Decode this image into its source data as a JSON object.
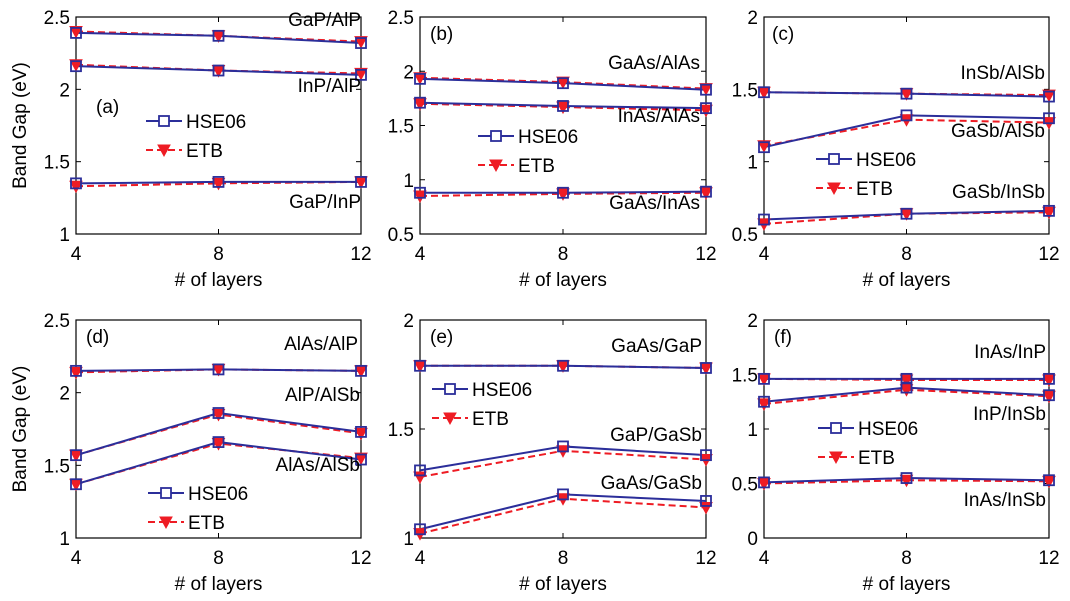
{
  "figure": {
    "ylabel": "Band Gap (eV)",
    "xlabel": "# of layers"
  },
  "legend": {
    "hse": "HSE06",
    "etb": "ETB"
  },
  "colors": {
    "hse": "#2b2e9a",
    "etb": "#ee1c24",
    "axis": "#000000"
  },
  "chart_data": [
    {
      "type": "line",
      "panel_label": "(a)",
      "x": [
        4,
        8,
        12
      ],
      "xlabel": "# of layers",
      "ylabel": "Band Gap (eV)",
      "ylim": [
        1,
        2.5
      ],
      "yticks": [
        "1",
        "1.5",
        "2",
        "2.5"
      ],
      "xticks": [
        "4",
        "8",
        "12"
      ],
      "legend_position": "center-left",
      "series": [
        {
          "name": "GaP/AlP",
          "hse": [
            2.39,
            2.37,
            2.32
          ],
          "etb": [
            2.4,
            2.37,
            2.33
          ]
        },
        {
          "name": "InP/AlP",
          "hse": [
            2.16,
            2.13,
            2.1
          ],
          "etb": [
            2.17,
            2.13,
            2.11
          ]
        },
        {
          "name": "GaP/InP",
          "hse": [
            1.35,
            1.36,
            1.36
          ],
          "etb": [
            1.33,
            1.35,
            1.36
          ]
        }
      ]
    },
    {
      "type": "line",
      "panel_label": "(b)",
      "x": [
        4,
        8,
        12
      ],
      "xlabel": "# of layers",
      "ylabel": "",
      "ylim": [
        0.5,
        2.5
      ],
      "yticks": [
        "0.5",
        "1",
        "1.5",
        "2",
        "2.5"
      ],
      "xticks": [
        "4",
        "8",
        "12"
      ],
      "legend_position": "center",
      "series": [
        {
          "name": "GaAs/AlAs",
          "hse": [
            1.93,
            1.89,
            1.83
          ],
          "etb": [
            1.94,
            1.9,
            1.84
          ]
        },
        {
          "name": "InAs/AlAs",
          "hse": [
            1.71,
            1.68,
            1.66
          ],
          "etb": [
            1.7,
            1.67,
            1.64
          ]
        },
        {
          "name": "GaAs/InAs",
          "hse": [
            0.88,
            0.88,
            0.89
          ],
          "etb": [
            0.85,
            0.87,
            0.88
          ]
        }
      ]
    },
    {
      "type": "line",
      "panel_label": "(c)",
      "x": [
        4,
        8,
        12
      ],
      "xlabel": "# of layers",
      "ylabel": "",
      "ylim": [
        0.5,
        2
      ],
      "yticks": [
        "0.5",
        "1",
        "1.5",
        "2"
      ],
      "xticks": [
        "4",
        "8",
        "12"
      ],
      "legend_position": "center",
      "series": [
        {
          "name": "InSb/AlSb",
          "hse": [
            1.48,
            1.47,
            1.45
          ],
          "etb": [
            1.48,
            1.47,
            1.46
          ]
        },
        {
          "name": "GaSb/AlSb",
          "hse": [
            1.1,
            1.32,
            1.3
          ],
          "etb": [
            1.11,
            1.29,
            1.27
          ]
        },
        {
          "name": "GaSb/InSb",
          "hse": [
            0.6,
            0.64,
            0.66
          ],
          "etb": [
            0.57,
            0.64,
            0.65
          ]
        }
      ]
    },
    {
      "type": "line",
      "panel_label": "(d)",
      "x": [
        4,
        8,
        12
      ],
      "xlabel": "# of layers",
      "ylabel": "Band Gap (eV)",
      "ylim": [
        1,
        2.5
      ],
      "yticks": [
        "1",
        "1.5",
        "2",
        "2.5"
      ],
      "xticks": [
        "4",
        "8",
        "12"
      ],
      "legend_position": "bottom-center",
      "series": [
        {
          "name": "AlAs/AlP",
          "hse": [
            2.15,
            2.16,
            2.15
          ],
          "etb": [
            2.14,
            2.16,
            2.15
          ]
        },
        {
          "name": "AlP/AlSb",
          "hse": [
            1.57,
            1.86,
            1.73
          ],
          "etb": [
            1.57,
            1.85,
            1.72
          ]
        },
        {
          "name": "AlAs/AlSb",
          "hse": [
            1.37,
            1.66,
            1.54
          ],
          "etb": [
            1.37,
            1.65,
            1.55
          ]
        }
      ]
    },
    {
      "type": "line",
      "panel_label": "(e)",
      "x": [
        4,
        8,
        12
      ],
      "xlabel": "# of layers",
      "ylabel": "",
      "ylim": [
        1,
        2
      ],
      "yticks": [
        "1",
        "1.5",
        "2"
      ],
      "xticks": [
        "4",
        "8",
        "12"
      ],
      "legend_position": "top-left",
      "series": [
        {
          "name": "GaAs/GaP",
          "hse": [
            1.79,
            1.79,
            1.78
          ],
          "etb": [
            1.79,
            1.79,
            1.78
          ]
        },
        {
          "name": "GaP/GaSb",
          "hse": [
            1.31,
            1.42,
            1.38
          ],
          "etb": [
            1.28,
            1.4,
            1.36
          ]
        },
        {
          "name": "GaAs/GaSb",
          "hse": [
            1.04,
            1.2,
            1.17
          ],
          "etb": [
            1.02,
            1.18,
            1.14
          ]
        }
      ]
    },
    {
      "type": "line",
      "panel_label": "(f)",
      "x": [
        4,
        8,
        12
      ],
      "xlabel": "# of layers",
      "ylabel": "",
      "ylim": [
        0,
        2
      ],
      "yticks": [
        "0",
        "0.5",
        "1",
        "1.5",
        "2"
      ],
      "xticks": [
        "4",
        "8",
        "12"
      ],
      "legend_position": "center",
      "series": [
        {
          "name": "InAs/InP",
          "hse": [
            1.46,
            1.46,
            1.46
          ],
          "etb": [
            1.46,
            1.45,
            1.45
          ]
        },
        {
          "name": "InP/InSb",
          "hse": [
            1.25,
            1.38,
            1.31
          ],
          "etb": [
            1.23,
            1.36,
            1.3
          ]
        },
        {
          "name": "InAs/InSb",
          "hse": [
            0.51,
            0.55,
            0.53
          ],
          "etb": [
            0.5,
            0.53,
            0.52
          ]
        }
      ]
    }
  ]
}
